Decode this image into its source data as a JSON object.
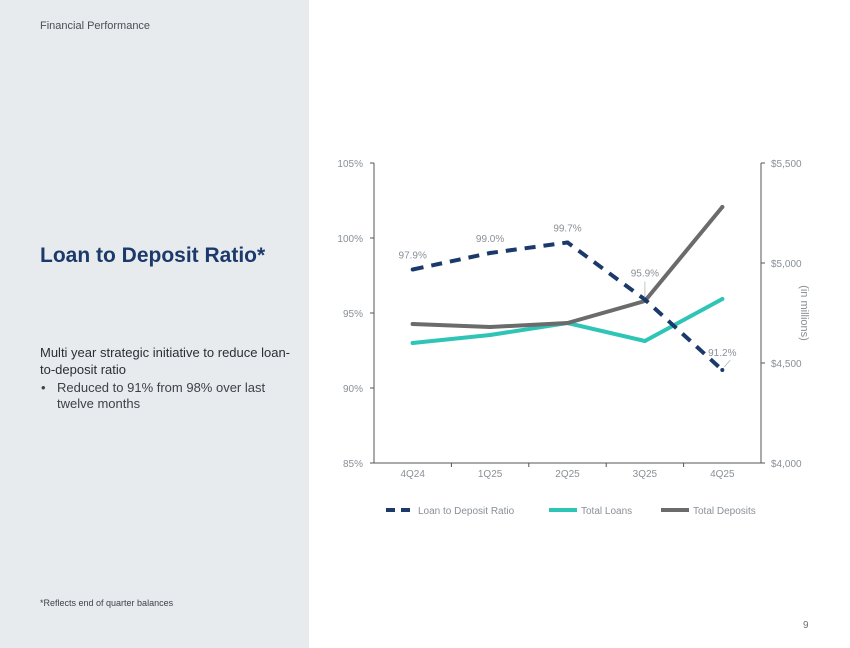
{
  "section_label": "Financial Performance",
  "title": "Loan to Deposit Ratio*",
  "subtitle": "Multi year strategic initiative to reduce loan-to-deposit ratio",
  "bullets": [
    "Reduced to 91% from 98% over last twelve months"
  ],
  "footnote": "*Reflects end of quarter balances",
  "page_number": "9",
  "colors": {
    "ratio": "#1b3a6b",
    "loans": "#2ec4b6",
    "deposits": "#6b6b6b",
    "panel": "#e8ebee"
  },
  "chart_data": {
    "type": "line",
    "categories": [
      "4Q24",
      "1Q25",
      "2Q25",
      "3Q25",
      "4Q25"
    ],
    "y_left": {
      "range": [
        85,
        105
      ],
      "ticks": [
        "85%",
        "90%",
        "95%",
        "100%",
        "105%"
      ]
    },
    "y_right": {
      "range": [
        4000,
        5500
      ],
      "ticks": [
        "$4,000",
        "$4,500",
        "$5,000",
        "$5,500"
      ],
      "label": "(in millions)"
    },
    "series": [
      {
        "name": "Loan to Deposit Ratio",
        "axis": "left",
        "style": "dashed",
        "values": [
          97.9,
          99.0,
          99.7,
          95.9,
          91.2
        ],
        "labels": [
          "97.9%",
          "99.0%",
          "99.7%",
          "95.9%",
          "91.2%"
        ]
      },
      {
        "name": "Total Loans",
        "axis": "right",
        "style": "solid",
        "values": [
          4600,
          4640,
          4700,
          4610,
          4820
        ]
      },
      {
        "name": "Total Deposits",
        "axis": "right",
        "style": "solid",
        "values": [
          4695,
          4680,
          4700,
          4810,
          5280
        ]
      }
    ],
    "legend": [
      "Loan to Deposit Ratio",
      "Total Loans",
      "Total Deposits"
    ]
  }
}
